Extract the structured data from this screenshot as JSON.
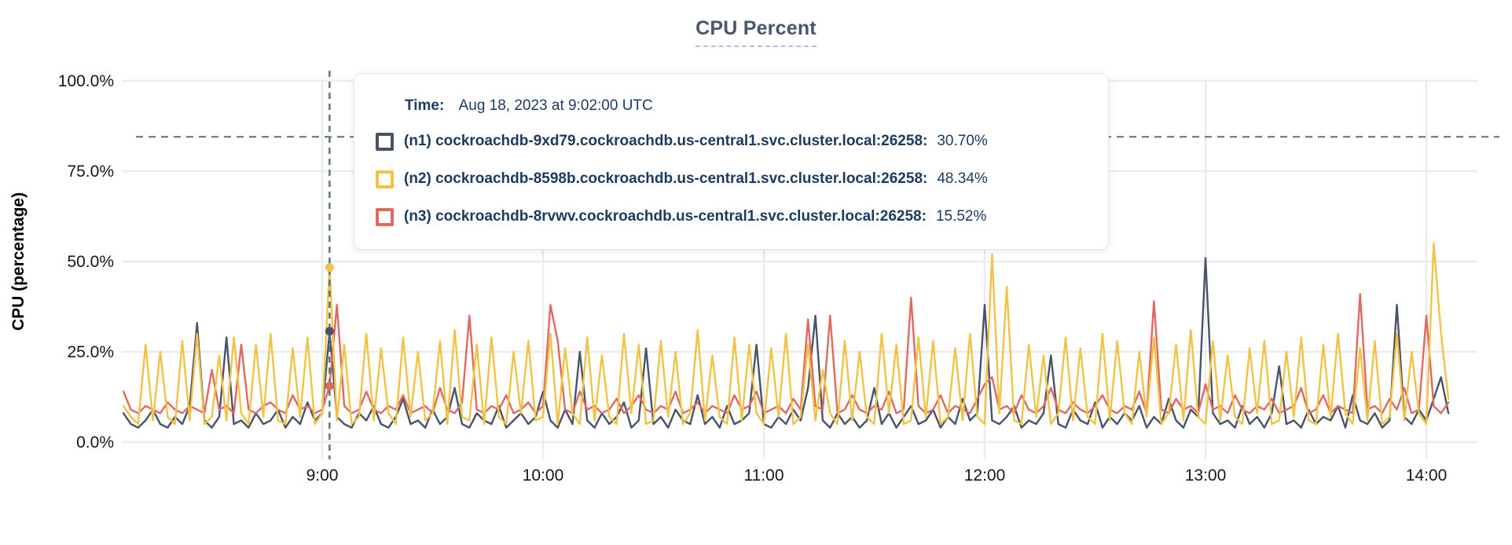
{
  "title": "CPU Percent",
  "tooltip": {
    "time_label": "Time:",
    "time_value": "Aug 18, 2023 at 9:02:00 UTC",
    "rows": [
      {
        "name": "(n1) cockroachdb-9xd79.cockroachdb.us-central1.svc.cluster.local:26258:",
        "value": "30.70%",
        "color": "#47536b"
      },
      {
        "name": "(n2) cockroachdb-8598b.cockroachdb.us-central1.svc.cluster.local:26258:",
        "value": "48.34%",
        "color": "#f2c245"
      },
      {
        "name": "(n3) cockroachdb-8rvwv.cockroachdb.us-central1.svc.cluster.local:26258:",
        "value": "15.52%",
        "color": "#df6960"
      }
    ]
  },
  "chart_data": {
    "type": "line",
    "title": "CPU Percent",
    "xlabel": "",
    "ylabel": "CPU (percentage)",
    "ylim": [
      0,
      100
    ],
    "grid": true,
    "y_ticks": [
      0,
      25,
      50,
      75,
      100
    ],
    "y_tick_labels": [
      "0.0%",
      "25.0%",
      "50.0%",
      "75.0%",
      "100.0%"
    ],
    "x_start_minutes": 486,
    "x_step_minutes": 2,
    "x_ticks_minutes": [
      540,
      600,
      660,
      720,
      780,
      840
    ],
    "x_tick_labels": [
      "9:00",
      "10:00",
      "11:00",
      "12:00",
      "13:00",
      "14:00"
    ],
    "dashed_reference_value": 84.5,
    "hover": {
      "index": 28,
      "time_minutes": 542,
      "time_text": "Aug 18, 2023 at 9:02:00 UTC"
    },
    "series": [
      {
        "name": "(n1) cockroachdb-9xd79.cockroachdb.us-central1.svc.cluster.local:26258",
        "color": "#47536b",
        "hover_value": 30.7,
        "values": [
          8,
          5,
          4,
          6,
          9,
          5,
          4,
          7,
          5,
          10,
          33,
          6,
          4,
          7,
          29,
          5,
          6,
          4,
          8,
          5,
          6,
          9,
          4,
          7,
          5,
          11,
          6,
          8,
          30.7,
          7,
          5,
          4,
          8,
          6,
          10,
          5,
          4,
          7,
          12,
          5,
          6,
          4,
          9,
          5,
          7,
          15,
          5,
          4,
          8,
          6,
          5,
          10,
          4,
          6,
          8,
          5,
          7,
          14,
          6,
          4,
          9,
          5,
          25,
          6,
          4,
          8,
          5,
          7,
          11,
          4,
          6,
          26,
          5,
          7,
          4,
          9,
          6,
          5,
          13,
          5,
          7,
          4,
          10,
          5,
          6,
          8,
          27,
          5,
          4,
          7,
          5,
          9,
          6,
          15,
          35,
          6,
          4,
          8,
          5,
          7,
          4,
          6,
          15,
          5,
          8,
          4,
          7,
          10,
          5,
          6,
          9,
          4,
          7,
          5,
          12,
          6,
          8,
          38,
          6,
          5,
          7,
          10,
          4,
          6,
          5,
          8,
          24,
          5,
          4,
          9,
          6,
          5,
          11,
          4,
          7,
          5,
          8,
          6,
          10,
          4,
          7,
          5,
          12,
          6,
          4,
          9,
          7,
          51,
          8,
          5,
          6,
          4,
          10,
          5,
          7,
          4,
          8,
          21,
          5,
          6,
          4,
          9,
          5,
          7,
          6,
          10,
          4,
          13,
          6,
          5,
          8,
          4,
          6,
          38,
          7,
          5,
          9,
          6,
          12,
          18,
          8
        ]
      },
      {
        "name": "(n2) cockroachdb-8598b.cockroachdb.us-central1.svc.cluster.local:26258",
        "color": "#f2c245",
        "hover_value": 48.34,
        "values": [
          10,
          7,
          5,
          27,
          6,
          25,
          7,
          5,
          28,
          6,
          30,
          5,
          7,
          24,
          6,
          29,
          8,
          5,
          27,
          7,
          30,
          6,
          5,
          26,
          7,
          29,
          5,
          8,
          48.34,
          6,
          27,
          5,
          7,
          30,
          6,
          26,
          8,
          5,
          29,
          7,
          25,
          6,
          8,
          28,
          5,
          31,
          7,
          6,
          27,
          5,
          29,
          7,
          5,
          25,
          8,
          28,
          6,
          7,
          30,
          5,
          26,
          8,
          5,
          29,
          6,
          24,
          7,
          5,
          30,
          8,
          27,
          5,
          6,
          28,
          7,
          25,
          5,
          8,
          31,
          6,
          24,
          7,
          5,
          29,
          6,
          27,
          8,
          5,
          26,
          7,
          30,
          5,
          7,
          27,
          6,
          20,
          8,
          5,
          28,
          6,
          25,
          7,
          5,
          30,
          8,
          27,
          5,
          6,
          29,
          7,
          28,
          5,
          7,
          26,
          6,
          30,
          7,
          5,
          52,
          8,
          43,
          6,
          5,
          27,
          7,
          24,
          5,
          8,
          29,
          6,
          26,
          7,
          5,
          30,
          6,
          28,
          8,
          5,
          25,
          7,
          29,
          5,
          8,
          27,
          6,
          31,
          7,
          5,
          28,
          6,
          24,
          7,
          5,
          26,
          8,
          28,
          5,
          6,
          25,
          7,
          29,
          6,
          5,
          27,
          7,
          30,
          8,
          5,
          26,
          6,
          28,
          5,
          7,
          30,
          6,
          25,
          8,
          5,
          55,
          30,
          12
        ]
      },
      {
        "name": "(n3) cockroachdb-8rvwv.cockroachdb.us-central1.svc.cluster.local:26258",
        "color": "#df6960",
        "hover_value": 15.52,
        "values": [
          14,
          9,
          8,
          10,
          9,
          8,
          11,
          9,
          8,
          10,
          9,
          8,
          20,
          9,
          10,
          8,
          27,
          9,
          8,
          10,
          11,
          9,
          8,
          13,
          9,
          10,
          8,
          9,
          15.52,
          38,
          10,
          8,
          9,
          14,
          9,
          8,
          10,
          9,
          13,
          8,
          9,
          10,
          8,
          15,
          9,
          8,
          11,
          35,
          9,
          8,
          10,
          9,
          13,
          8,
          9,
          11,
          8,
          10,
          38,
          28,
          9,
          8,
          14,
          9,
          10,
          8,
          9,
          12,
          8,
          10,
          13,
          9,
          8,
          10,
          9,
          14,
          8,
          9,
          11,
          8,
          10,
          9,
          8,
          13,
          9,
          10,
          14,
          8,
          9,
          10,
          8,
          12,
          9,
          34,
          10,
          9,
          35,
          8,
          9,
          13,
          9,
          8,
          10,
          9,
          14,
          8,
          9,
          40,
          10,
          8,
          9,
          13,
          8,
          10,
          9,
          8,
          12,
          16,
          18,
          9,
          10,
          8,
          13,
          9,
          8,
          10,
          15,
          9,
          8,
          11,
          9,
          8,
          10,
          13,
          9,
          8,
          10,
          9,
          14,
          8,
          39,
          9,
          8,
          12,
          9,
          10,
          8,
          16,
          9,
          10,
          8,
          13,
          9,
          8,
          10,
          9,
          12,
          8,
          9,
          10,
          15,
          8,
          9,
          13,
          8,
          10,
          9,
          8,
          41,
          9,
          10,
          8,
          12,
          9,
          15,
          8,
          9,
          35,
          10,
          8,
          11
        ]
      }
    ]
  }
}
